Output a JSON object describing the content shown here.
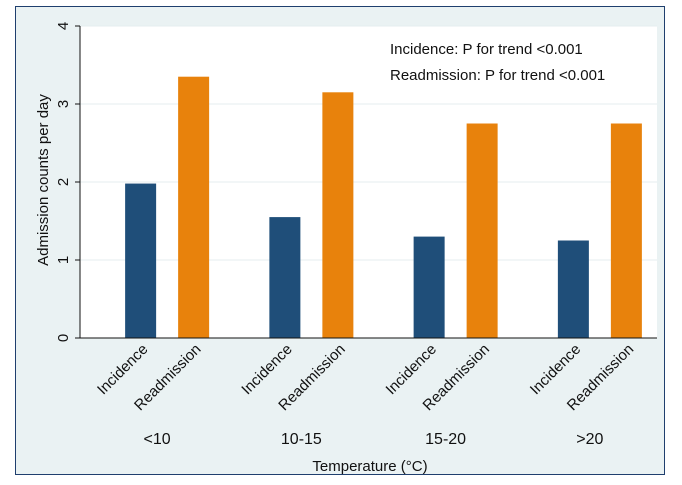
{
  "chart_data": {
    "type": "bar",
    "categories": [
      "<10",
      "10-15",
      "15-20",
      ">20"
    ],
    "bar_labels": [
      "Incidence",
      "Readmission"
    ],
    "series": [
      {
        "name": "Incidence",
        "values": [
          1.98,
          1.55,
          1.3,
          1.25
        ],
        "color": "#1f4e79"
      },
      {
        "name": "Readmission",
        "values": [
          3.35,
          3.15,
          2.75,
          2.75
        ],
        "color": "#e8820c"
      }
    ],
    "title": "",
    "xlabel": "Temperature (°C)",
    "ylabel": "Admission counts per day",
    "ylim": [
      0,
      4
    ],
    "yticks": [
      "0",
      "1",
      "2",
      "3",
      "4"
    ],
    "grid": true,
    "annotations": [
      "Incidence: P for trend <0.001",
      "Readmission: P for trend <0.001"
    ],
    "colors": {
      "plot_background": "#ffffff",
      "outer_background": "#eaf2f3",
      "gridline": "#e4eeef"
    }
  }
}
